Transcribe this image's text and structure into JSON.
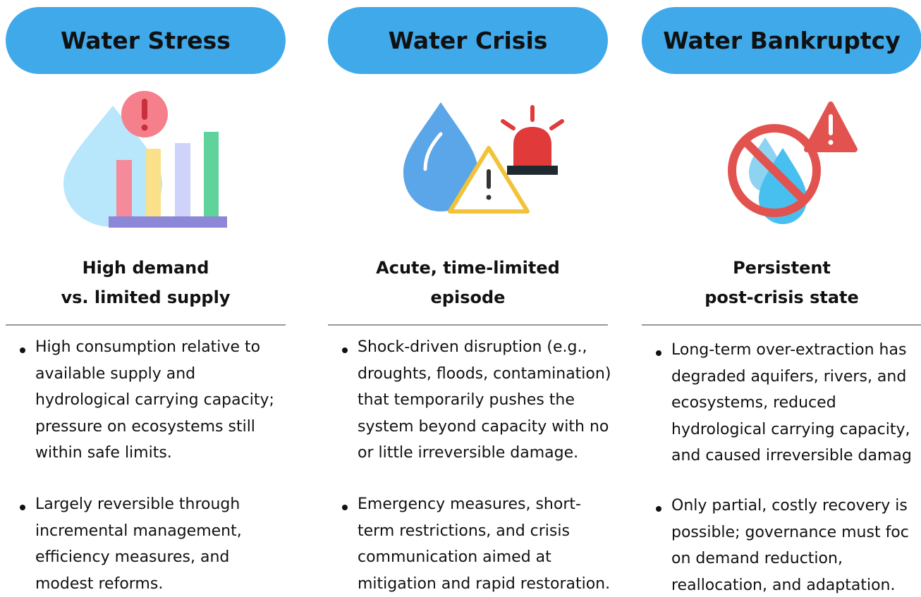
{
  "columns": [
    {
      "title": "Water Stress",
      "subtitle": [
        "High demand",
        "vs. limited supply"
      ],
      "bullets": [
        {
          "lines": [
            "High consumption relative to",
            "available supply and",
            "hydrological carrying capacity;",
            "pressure on ecosystems still",
            "within safe limits."
          ]
        },
        {
          "lines": [
            "Largely reversible through",
            "incremental management,",
            "efficiency measures, and",
            "modest reforms."
          ]
        }
      ]
    },
    {
      "title": "Water Crisis",
      "subtitle": [
        "Acute, time-limited",
        "episode"
      ],
      "bullets": [
        {
          "lines": [
            "Shock-driven disruption (e.g.,",
            "droughts, floods, contamination)",
            "that temporarily pushes the",
            "system beyond capacity with no",
            "or little irreversible damage."
          ]
        },
        {
          "lines": [
            "Emergency measures, short-",
            "term restrictions, and crisis",
            "communication aimed at",
            "mitigation and rapid restoration."
          ]
        }
      ]
    },
    {
      "title": "Water Bankruptcy",
      "subtitle": [
        "Persistent",
        "post-crisis state"
      ],
      "bullets": [
        {
          "lines": [
            "Long-term over-extraction has",
            "degraded aquifers, rivers, and",
            "ecosystems, reduced",
            "hydrological carrying capacity,",
            "and caused irreversible damag"
          ]
        },
        {
          "lines": [
            "Only partial, costly recovery is",
            "possible; governance must foc",
            "on demand reduction,",
            "reallocation, and adaptation."
          ]
        }
      ]
    }
  ]
}
